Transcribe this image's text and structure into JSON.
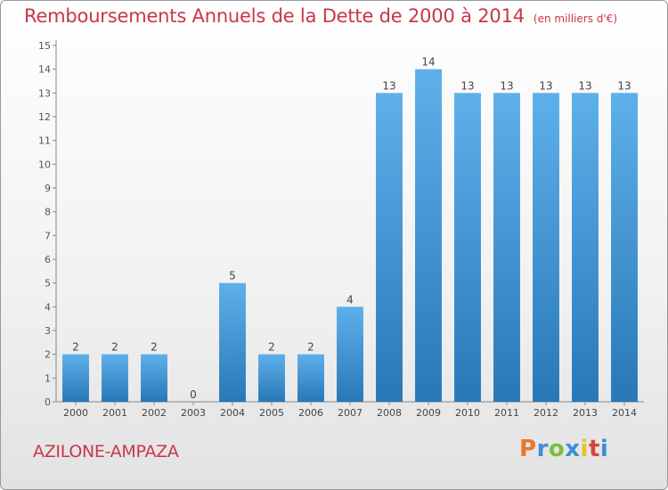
{
  "header": {
    "title": "Remboursements Annuels de la Dette de 2000 à 2014",
    "unit": "(en milliers d'€)"
  },
  "footer": {
    "place": "AZILONE-AMPAZA",
    "logo": "Proxiti",
    "logo_colors": [
      "#e8792b",
      "#3a8fd6",
      "#7bbf3a",
      "#3a8fd6",
      "#e6c42a",
      "#d6463a",
      "#3a8fd6"
    ]
  },
  "chart_data": {
    "type": "bar",
    "title": "Remboursements Annuels de la Dette de 2000 à 2014",
    "subtitle": "(en milliers d'€)",
    "categories": [
      "2000",
      "2001",
      "2002",
      "2003",
      "2004",
      "2005",
      "2006",
      "2007",
      "2008",
      "2009",
      "2010",
      "2011",
      "2012",
      "2013",
      "2014"
    ],
    "values": [
      2,
      2,
      2,
      0,
      5,
      2,
      2,
      4,
      13,
      14,
      13,
      13,
      13,
      13,
      13
    ],
    "data_labels": [
      "2",
      "2",
      "2",
      "0",
      "5",
      "2",
      "2",
      "4",
      "13",
      "14",
      "13",
      "13",
      "13",
      "13",
      "13"
    ],
    "yticks": [
      "0",
      "1",
      "2",
      "3",
      "4",
      "5",
      "6",
      "7",
      "8",
      "9",
      "10",
      "11",
      "12",
      "13",
      "14",
      "15"
    ],
    "ylim": [
      0,
      15
    ],
    "grid": false,
    "bar_color_top": "#5eb0ea",
    "bar_color_bottom": "#2878b8"
  }
}
